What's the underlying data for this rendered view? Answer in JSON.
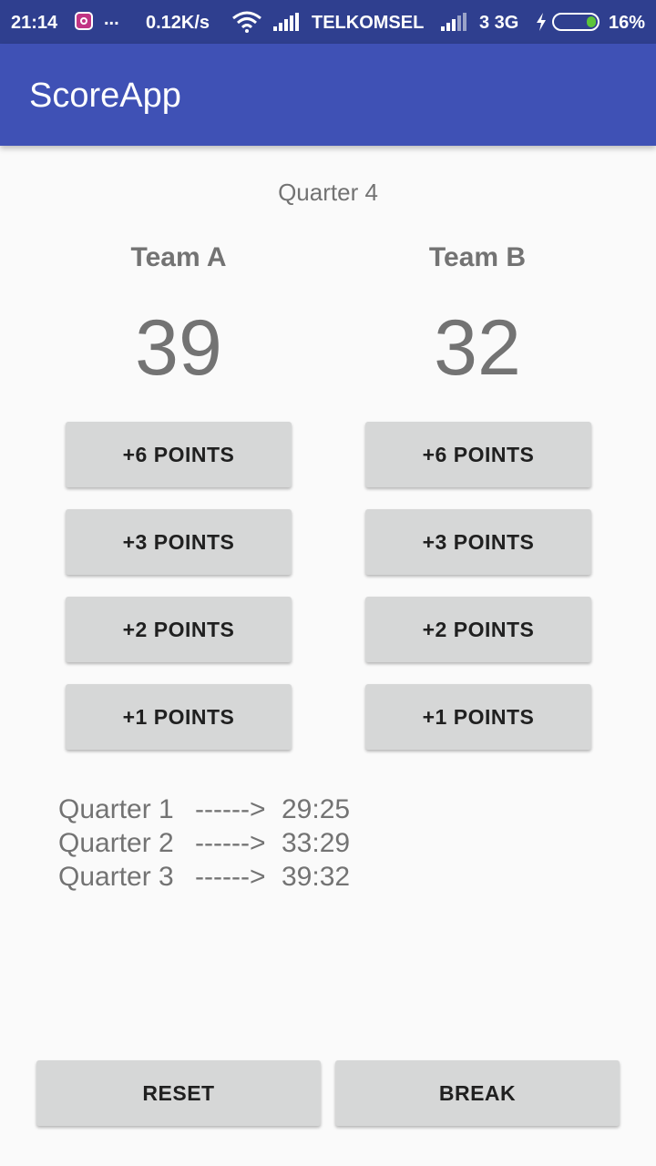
{
  "status_bar": {
    "time": "21:14",
    "icons": [
      "instagram-icon",
      "wifi-icon",
      "signal-icon",
      "signal-icon",
      "charging-icon",
      "battery-icon"
    ],
    "more": "...",
    "speed": "0.12K/s",
    "carrier": "TELKOMSEL",
    "network": "3 3G",
    "battery": "16%",
    "colors": {
      "bar": "#2f3f8f",
      "battery_fill": "#5cc43a"
    }
  },
  "app_bar": {
    "title": "ScoreApp",
    "color": "#3f51b5"
  },
  "current_quarter": "Quarter 4",
  "team_a": {
    "name": "Team A",
    "score": "39",
    "buttons": [
      "+6 POINTS",
      "+3 POINTS",
      "+2 POINTS",
      "+1 POINTS"
    ]
  },
  "team_b": {
    "name": "Team B",
    "score": "32",
    "buttons": [
      "+6 POINTS",
      "+3 POINTS",
      "+2 POINTS",
      "+1 POINTS"
    ]
  },
  "history": [
    {
      "quarter": "Quarter 1",
      "arrow": "------>",
      "score": "29:25"
    },
    {
      "quarter": "Quarter 2",
      "arrow": "------>",
      "score": "33:29"
    },
    {
      "quarter": "Quarter 3",
      "arrow": "------>",
      "score": "39:32"
    }
  ],
  "actions": {
    "reset": "RESET",
    "break": "BREAK"
  },
  "colors": {
    "text_secondary": "#737373",
    "button_bg": "#d6d7d7",
    "background": "#fafafa"
  }
}
